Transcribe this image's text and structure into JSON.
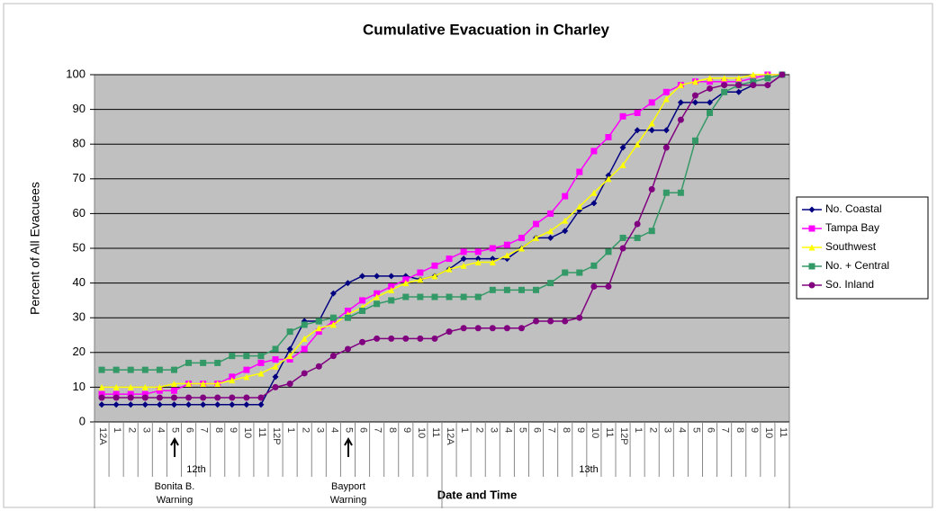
{
  "chart_data": {
    "type": "line",
    "title": "Cumulative Evacuation in Charley",
    "y_label": "Percent of All Evacuees",
    "x_label": "Date and Time",
    "categories": [
      "12A",
      "1",
      "2",
      "3",
      "4",
      "5",
      "6",
      "7",
      "8",
      "9",
      "10",
      "11",
      "12P",
      "1",
      "2",
      "3",
      "4",
      "5",
      "6",
      "7",
      "8",
      "9",
      "10",
      "11",
      "12A",
      "1",
      "2",
      "3",
      "4",
      "5",
      "6",
      "7",
      "8",
      "9",
      "10",
      "11",
      "12P",
      "1",
      "2",
      "3",
      "4",
      "5",
      "6",
      "7",
      "8",
      "9",
      "10",
      "11"
    ],
    "group_labels": [
      "12th",
      "13th"
    ],
    "annotations": [
      {
        "lines": [
          "Bonita B.",
          "Warning"
        ]
      },
      {
        "lines": [
          "Bayport",
          "Warning"
        ]
      }
    ],
    "ylim": [
      0,
      100
    ],
    "yticks": [
      0,
      10,
      20,
      30,
      40,
      50,
      60,
      70,
      80,
      90,
      100
    ],
    "grid": true,
    "legend": "right",
    "series": [
      {
        "name": "No. Coastal",
        "color": "#000080",
        "marker": "diamond",
        "values": [
          5,
          5,
          5,
          5,
          5,
          5,
          5,
          5,
          5,
          5,
          5,
          5,
          13,
          21,
          29,
          29,
          37,
          40,
          42,
          42,
          42,
          42,
          41,
          42,
          44,
          47,
          47,
          47,
          47,
          50,
          53,
          53,
          55,
          61,
          63,
          71,
          79,
          84,
          84,
          84,
          92,
          92,
          92,
          95,
          95,
          97,
          97,
          100
        ]
      },
      {
        "name": "Tampa Bay",
        "color": "#ff00ff",
        "marker": "square",
        "values": [
          8,
          8,
          8,
          8,
          9,
          9,
          11,
          11,
          11,
          13,
          15,
          17,
          18,
          18,
          21,
          26,
          29,
          32,
          35,
          37,
          39,
          41,
          43,
          45,
          47,
          49,
          49,
          50,
          51,
          53,
          57,
          60,
          65,
          72,
          78,
          82,
          88,
          89,
          92,
          95,
          97,
          98,
          98,
          98,
          98,
          99,
          100,
          100
        ]
      },
      {
        "name": "Southwest",
        "color": "#ffff00",
        "marker": "triangle",
        "values": [
          10,
          10,
          10,
          10,
          10,
          11,
          11,
          11,
          11,
          12,
          13,
          14,
          16,
          19,
          24,
          27,
          28,
          31,
          33,
          36,
          38,
          40,
          41,
          42,
          44,
          45,
          46,
          46,
          48,
          50,
          53,
          55,
          58,
          62,
          66,
          70,
          74,
          80,
          86,
          93,
          97,
          98,
          99,
          99,
          99,
          100,
          100,
          100
        ]
      },
      {
        "name": "No. + Central",
        "color": "#339966",
        "marker": "square",
        "values": [
          15,
          15,
          15,
          15,
          15,
          15,
          17,
          17,
          17,
          19,
          19,
          19,
          21,
          26,
          28,
          29,
          30,
          30,
          32,
          34,
          35,
          36,
          36,
          36,
          36,
          36,
          36,
          38,
          38,
          38,
          38,
          40,
          43,
          43,
          45,
          49,
          53,
          53,
          55,
          66,
          66,
          81,
          89,
          95,
          97,
          98,
          99,
          100
        ]
      },
      {
        "name": "So. Inland",
        "color": "#800080",
        "marker": "circle",
        "values": [
          7,
          7,
          7,
          7,
          7,
          7,
          7,
          7,
          7,
          7,
          7,
          7,
          10,
          11,
          14,
          16,
          19,
          21,
          23,
          24,
          24,
          24,
          24,
          24,
          26,
          27,
          27,
          27,
          27,
          27,
          29,
          29,
          29,
          30,
          39,
          39,
          50,
          57,
          67,
          79,
          87,
          94,
          96,
          97,
          97,
          97,
          97,
          100
        ]
      }
    ]
  }
}
